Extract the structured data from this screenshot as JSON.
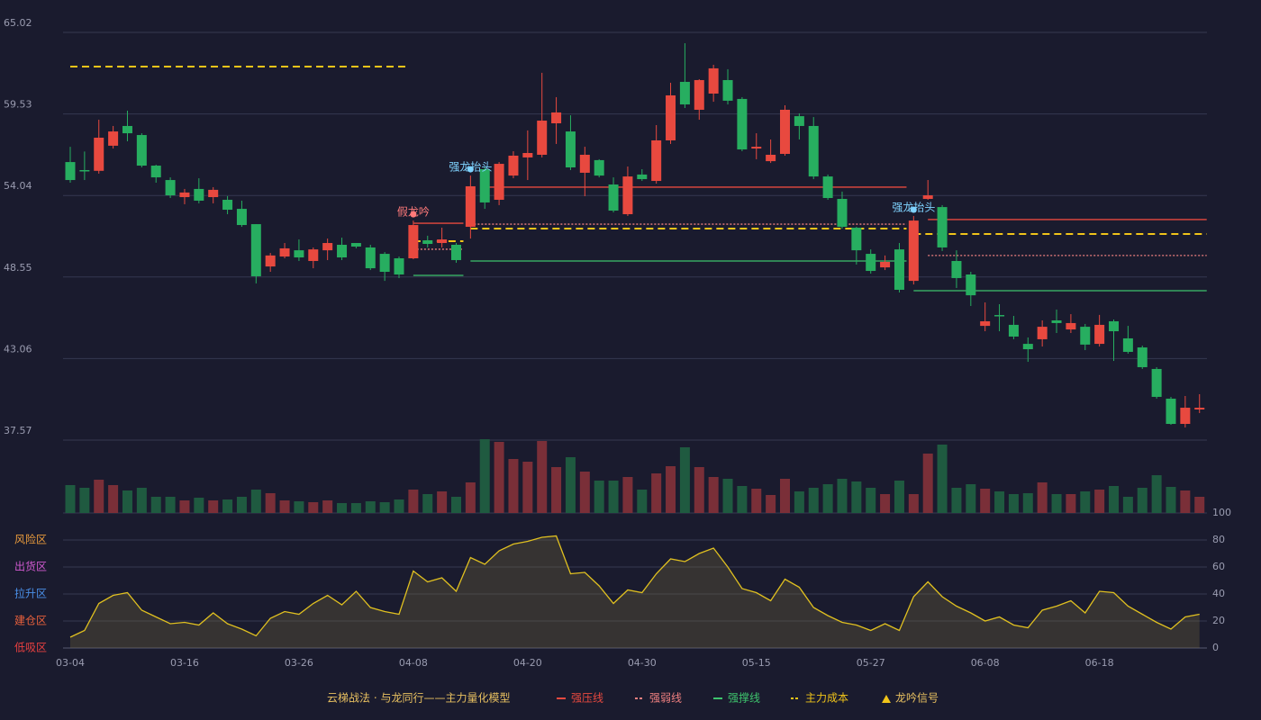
{
  "chart_data": {
    "type": "candlestick",
    "categories": [
      "03-04",
      null,
      null,
      null,
      null,
      null,
      null,
      null,
      "03-16",
      null,
      null,
      null,
      null,
      null,
      null,
      null,
      "03-26",
      null,
      null,
      null,
      null,
      null,
      null,
      null,
      "04-08",
      null,
      null,
      null,
      null,
      null,
      null,
      null,
      "04-20",
      null,
      null,
      null,
      null,
      null,
      null,
      null,
      "04-30",
      null,
      null,
      null,
      null,
      null,
      null,
      null,
      "05-15",
      null,
      null,
      null,
      null,
      null,
      null,
      null,
      "05-27",
      null,
      null,
      null,
      null,
      null,
      null,
      null,
      "06-08",
      null,
      null,
      null,
      null,
      null,
      null,
      null,
      "06-18",
      null,
      null,
      null,
      null,
      null,
      null,
      null
    ],
    "open": [
      56.29,
      55.75,
      55.7,
      57.39,
      58.72,
      58.11,
      56.05,
      55.08,
      53.93,
      54.48,
      53.93,
      53.75,
      53.14,
      52.11,
      49.26,
      49.93,
      50.35,
      49.63,
      50.35,
      50.72,
      50.84,
      50.54,
      50.11,
      49.81,
      49.81,
      51.02,
      50.84,
      50.72,
      51.93,
      55.81,
      53.75,
      55.38,
      56.6,
      56.78,
      58.9,
      58.35,
      55.57,
      56.42,
      54.78,
      52.78,
      55.45,
      55.02,
      57.75,
      61.69,
      59.81,
      60.9,
      61.81,
      60.54,
      57.2,
      56.35,
      56.84,
      59.38,
      58.72,
      55.32,
      53.81,
      51.87,
      50.11,
      49.2,
      50.41,
      48.29,
      53.81,
      53.26,
      49.63,
      48.72,
      45.26,
      45.99,
      45.33,
      44.05,
      44.36,
      45.63,
      45.02,
      45.2,
      44.05,
      45.57,
      44.42,
      43.81,
      42.36,
      40.36,
      38.66,
      39.63
    ],
    "high": [
      57.32,
      57.0,
      59.14,
      58.72,
      59.75,
      58.23,
      56.11,
      55.26,
      54.48,
      55.2,
      54.6,
      54.0,
      53.69,
      52.11,
      50.17,
      50.84,
      51.08,
      50.54,
      51.14,
      51.2,
      50.84,
      50.72,
      50.23,
      49.93,
      52.35,
      51.33,
      51.87,
      50.84,
      55.38,
      56.0,
      56.29,
      57.02,
      58.42,
      62.3,
      60.66,
      59.44,
      57.32,
      56.48,
      55.26,
      55.99,
      55.81,
      58.78,
      61.63,
      64.29,
      61.87,
      62.84,
      62.54,
      60.66,
      58.23,
      57.81,
      60.11,
      59.57,
      59.32,
      55.45,
      54.3,
      51.93,
      50.41,
      50.0,
      50.84,
      52.66,
      55.08,
      53.39,
      50.35,
      48.9,
      46.84,
      46.72,
      45.93,
      44.48,
      45.63,
      46.36,
      46.05,
      45.39,
      46.0,
      45.69,
      45.26,
      43.93,
      42.48,
      40.48,
      40.54,
      40.66
    ],
    "low": [
      54.9,
      55.08,
      55.51,
      57.2,
      57.69,
      55.93,
      54.9,
      53.87,
      53.45,
      53.51,
      53.51,
      52.78,
      51.93,
      48.12,
      48.9,
      49.81,
      49.63,
      49.14,
      49.69,
      49.69,
      50.48,
      49.02,
      48.29,
      48.48,
      49.75,
      50.54,
      50.54,
      49.51,
      51.14,
      53.14,
      53.39,
      55.2,
      55.08,
      56.6,
      57.51,
      55.75,
      53.99,
      55.26,
      52.9,
      52.66,
      55.02,
      54.84,
      57.51,
      59.93,
      59.14,
      60.35,
      60.17,
      57.02,
      56.48,
      56.23,
      56.72,
      57.81,
      55.14,
      53.75,
      51.81,
      49.39,
      48.78,
      49.02,
      47.51,
      48.05,
      53.75,
      50.3,
      47.81,
      46.6,
      44.9,
      44.9,
      44.36,
      42.84,
      43.87,
      44.78,
      44.78,
      43.63,
      43.87,
      42.9,
      43.39,
      42.36,
      40.36,
      38.6,
      38.42,
      39.39
    ],
    "close": [
      55.08,
      55.7,
      57.93,
      58.35,
      58.23,
      56.05,
      55.26,
      54.05,
      54.24,
      53.69,
      54.42,
      53.08,
      52.05,
      48.6,
      50.0,
      50.48,
      49.87,
      50.41,
      50.84,
      49.87,
      50.6,
      49.14,
      48.9,
      48.72,
      52.05,
      50.78,
      51.08,
      49.69,
      54.66,
      53.57,
      56.17,
      56.72,
      56.9,
      59.08,
      59.63,
      55.93,
      56.78,
      55.38,
      53.02,
      55.32,
      55.14,
      57.75,
      60.78,
      60.17,
      61.81,
      62.6,
      60.42,
      57.14,
      57.32,
      56.78,
      59.81,
      58.72,
      55.32,
      53.87,
      51.93,
      50.35,
      48.96,
      49.57,
      47.69,
      52.35,
      54.05,
      50.54,
      48.48,
      47.32,
      45.57,
      45.93,
      44.54,
      43.69,
      45.2,
      45.45,
      45.45,
      44.0,
      45.33,
      44.9,
      43.51,
      42.48,
      40.48,
      38.66,
      39.75,
      39.75
    ],
    "volume": [
      31,
      28,
      37,
      31,
      25,
      28,
      18,
      18,
      14,
      17,
      14,
      15,
      18,
      26,
      22,
      14,
      13,
      12,
      14,
      11,
      11,
      13,
      12,
      15,
      26,
      21,
      24,
      18,
      34,
      82,
      79,
      60,
      57,
      80,
      51,
      62,
      46,
      36,
      36,
      40,
      26,
      44,
      52,
      73,
      51,
      40,
      38,
      30,
      27,
      20,
      38,
      24,
      28,
      32,
      38,
      35,
      28,
      21,
      36,
      21,
      66,
      76,
      28,
      32,
      27,
      24,
      21,
      22,
      34,
      21,
      21,
      24,
      26,
      30,
      18,
      28,
      42,
      29,
      25,
      18
    ],
    "ylim": [
      37.57,
      65.02
    ],
    "yticks": [
      65.02,
      59.53,
      54.04,
      48.55,
      43.06,
      37.57
    ],
    "up_color": "#e8493f",
    "down_color": "#27ae60",
    "levels": [
      {
        "name": "强压线",
        "color": "#e8493f",
        "style": "solid",
        "segments": [
          {
            "value": 52.17,
            "from": 24,
            "to": 27
          },
          {
            "value": 54.6,
            "from": 29,
            "to": 58
          },
          {
            "value": 52.42,
            "from": 60,
            "to": 79
          }
        ]
      },
      {
        "name": "强弱线",
        "color": "#f08080",
        "style": "dotted",
        "segments": [
          {
            "value": 50.42,
            "from": 24,
            "to": 27
          },
          {
            "value": 52.11,
            "from": 28,
            "to": 58
          },
          {
            "value": 50.0,
            "from": 60,
            "to": 79
          }
        ]
      },
      {
        "name": "强撑线",
        "color": "#3ec46d",
        "style": "solid",
        "segments": [
          {
            "value": 48.66,
            "from": 24,
            "to": 27
          },
          {
            "value": 49.63,
            "from": 28,
            "to": 58
          },
          {
            "value": 47.63,
            "from": 59,
            "to": 79
          }
        ]
      },
      {
        "name": "主力成本",
        "color": "#f0c419",
        "style": "dashed",
        "segments": [
          {
            "value": 62.72,
            "from": 0,
            "to": 23
          },
          {
            "value": 50.96,
            "from": 24,
            "to": 27
          },
          {
            "value": 51.81,
            "from": 28,
            "to": 58
          },
          {
            "value": 51.45,
            "from": 59,
            "to": 79
          }
        ]
      }
    ],
    "signals": [
      {
        "index": 24,
        "label": "假龙吟",
        "color": "#ff7a7a"
      },
      {
        "index": 28,
        "label": "强龙抬头",
        "color": "#7fd3ff"
      },
      {
        "index": 59,
        "label": "强龙抬头",
        "color": "#7fd3ff"
      }
    ],
    "signal_legend": "龙吟信号",
    "signal_color": "#f0c419",
    "legend_title": "云梯战法 · 与龙同行——主力量化模型",
    "oscillator": {
      "values": [
        8,
        13,
        33,
        39,
        41,
        28,
        23,
        18,
        19,
        17,
        26,
        18,
        14,
        9,
        22,
        27,
        25,
        33,
        39,
        32,
        42,
        30,
        27,
        25,
        57,
        49,
        52,
        42,
        67,
        62,
        72,
        77,
        79,
        82,
        83,
        55,
        56,
        46,
        33,
        43,
        41,
        55,
        66,
        64,
        70,
        74,
        60,
        44,
        41,
        35,
        51,
        45,
        30,
        24,
        19,
        17,
        13,
        18,
        13,
        38,
        49,
        38,
        31,
        26,
        20,
        23,
        17,
        15,
        28,
        31,
        35,
        26,
        42,
        41,
        31,
        25,
        19,
        14,
        23,
        25
      ],
      "color": "#e0c020",
      "ylim": [
        0,
        100
      ],
      "yticks": [
        0,
        20,
        40,
        60,
        80,
        100
      ],
      "tick_colors": [
        "#e84040",
        "#e8603c",
        "#4a8fe8",
        "#d05ad0",
        "#e89a3c",
        "#3ec46d"
      ],
      "zones": [
        {
          "label": "风险区",
          "value": 80,
          "color": "#e89a3c"
        },
        {
          "label": "出货区",
          "value": 60,
          "color": "#d05ad0"
        },
        {
          "label": "拉升区",
          "value": 40,
          "color": "#4a8fe8"
        },
        {
          "label": "建仓区",
          "value": 20,
          "color": "#e8603c"
        },
        {
          "label": "低吸区",
          "value": 0,
          "color": "#e84040"
        }
      ]
    }
  }
}
